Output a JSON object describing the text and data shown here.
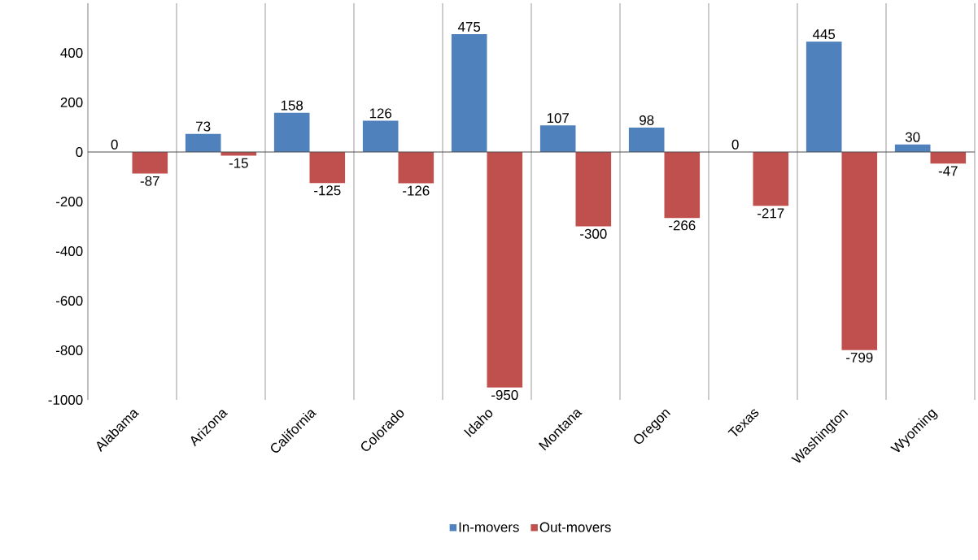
{
  "chart_data": {
    "type": "bar",
    "categories": [
      "Alabama",
      "Arizona",
      "California",
      "Colorado",
      "Idaho",
      "Montana",
      "Oregon",
      "Texas",
      "Washington",
      "Wyoming"
    ],
    "series": [
      {
        "name": "In-movers",
        "color": "#4f81bd",
        "values": [
          0,
          73,
          158,
          126,
          475,
          107,
          98,
          0,
          445,
          30
        ]
      },
      {
        "name": "Out-movers",
        "color": "#c0504d",
        "values": [
          -87,
          -15,
          -125,
          -126,
          -950,
          -300,
          -266,
          -217,
          -799,
          -47
        ]
      }
    ],
    "ylim": [
      -1000,
      600
    ],
    "yticks": [
      -1000,
      -800,
      -600,
      -400,
      -200,
      0,
      200,
      400
    ],
    "ref_lines": [
      {
        "axis": "y",
        "value": 0
      }
    ],
    "grid": "x",
    "legend": "bottom",
    "data_labels": true
  }
}
